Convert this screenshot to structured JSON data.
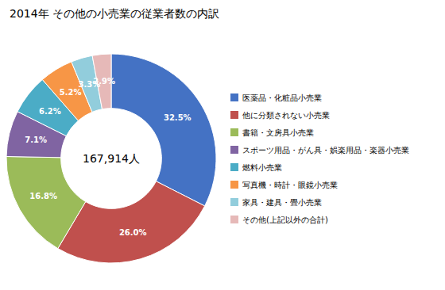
{
  "chart_data": {
    "type": "donut",
    "title": "2014年 その他の小売業の従業者数の内訳",
    "center_text": "167,914人",
    "categories": [
      "医薬品・化粧品小売業",
      "他に分類されない小売業",
      "書籍・文房具小売業",
      "スポーツ用品・がん具・娯楽用品・楽器小売業",
      "燃料小売業",
      "写真機・時計・眼鏡小売業",
      "家具・建具・畳小売業",
      "その他(上記以外の合計)"
    ],
    "values": [
      32.5,
      26.0,
      16.8,
      7.1,
      6.2,
      5.2,
      3.3,
      2.9
    ],
    "value_labels": [
      "32.5%",
      "26.0%",
      "16.8%",
      "7.1%",
      "6.2%",
      "5.2%",
      "3.3%",
      "2.9%"
    ],
    "colors": [
      "#4472C4",
      "#C0504D",
      "#9BBB59",
      "#8064A2",
      "#4BACC6",
      "#F79646",
      "#92CDDC",
      "#E6B9B8"
    ],
    "data_labels": true,
    "legend": "right"
  }
}
